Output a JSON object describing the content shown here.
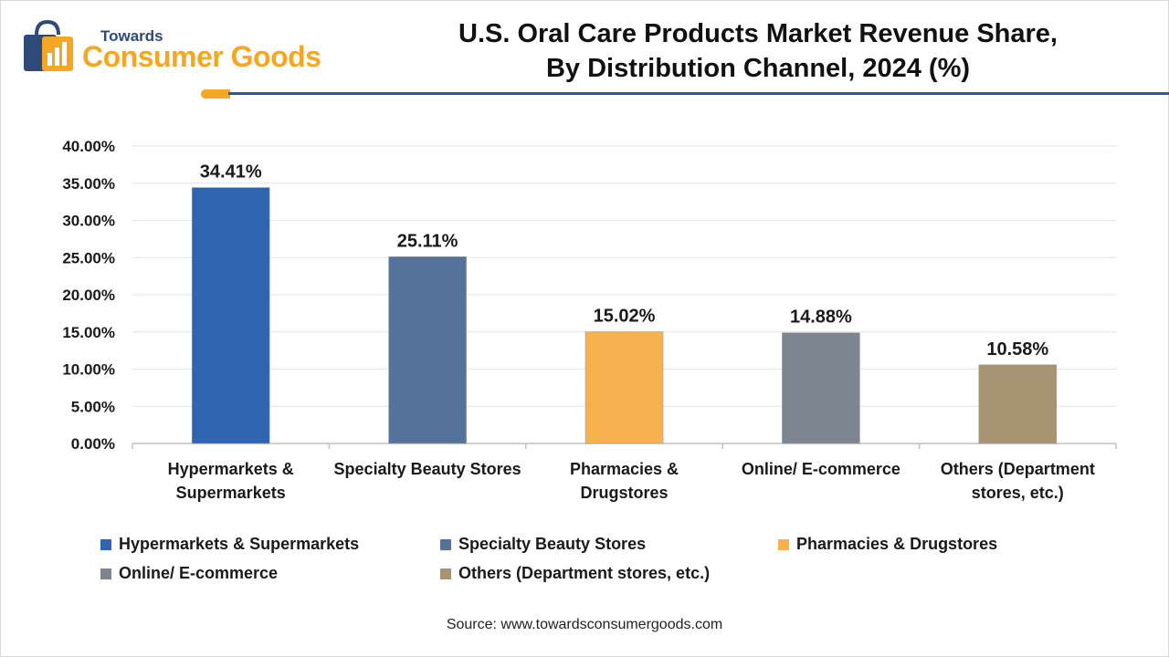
{
  "logo": {
    "small": "Towards",
    "big": "Consumer Goods"
  },
  "title": {
    "line1": "U.S. Oral Care Products Market Revenue Share,",
    "line2": "By Distribution Channel, 2024 (%)"
  },
  "chart_data": {
    "type": "bar",
    "categories": [
      "Hypermarkets & Supermarkets",
      "Specialty Beauty Stores",
      "Pharmacies & Drugstores",
      "Online/ E-commerce",
      "Others (Department stores, etc.)"
    ],
    "category_label_lines": [
      [
        "Hypermarkets &",
        "Supermarkets"
      ],
      [
        "Specialty Beauty Stores"
      ],
      [
        "Pharmacies &",
        "Drugstores"
      ],
      [
        "Online/ E-commerce"
      ],
      [
        "Others (Department",
        "stores, etc.)"
      ]
    ],
    "values": [
      34.41,
      25.11,
      15.02,
      14.88,
      10.58
    ],
    "data_labels": [
      "34.41%",
      "25.11%",
      "15.02%",
      "14.88%",
      "10.58%"
    ],
    "colors": [
      "#2e64b0",
      "#55729b",
      "#f7b14e",
      "#7d8690",
      "#a89373"
    ],
    "ylim": [
      0,
      40
    ],
    "yticks": [
      "0.00%",
      "5.00%",
      "10.00%",
      "15.00%",
      "20.00%",
      "25.00%",
      "30.00%",
      "35.00%",
      "40.00%"
    ],
    "grid": true,
    "legend_position": "bottom"
  },
  "source": "Source: www.towardsconsumergoods.com"
}
